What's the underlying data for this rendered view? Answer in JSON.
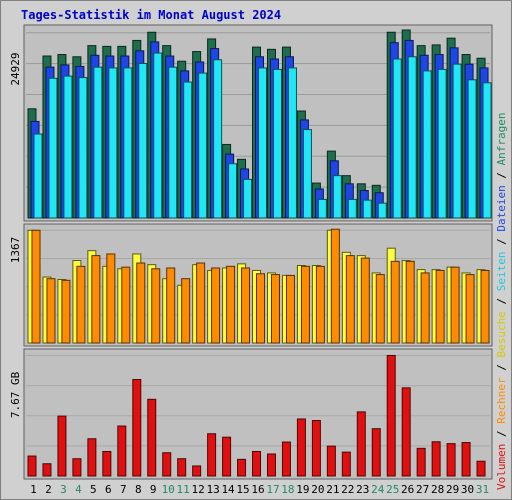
{
  "title": "Tages-Statistik im Monat August 2024",
  "colors": {
    "panel_bg": "#c0c0c0",
    "anfragen": "#1e6e4e",
    "dateien": "#1e46e6",
    "seiten": "#20e6f6",
    "besuche": "#ffff40",
    "rechner": "#ff8c00",
    "volumen": "#e01010",
    "weekend_tick": "#228866",
    "tick": "#000000"
  },
  "legend_right": [
    {
      "text": "Volumen",
      "color": "#e01010"
    },
    {
      "text": " / ",
      "color": "#000000"
    },
    {
      "text": "Rechner",
      "color": "#ff8c00"
    },
    {
      "text": " / ",
      "color": "#000000"
    },
    {
      "text": "Besuche",
      "color": "#d8c800"
    },
    {
      "text": " / ",
      "color": "#000000"
    },
    {
      "text": "Seiten",
      "color": "#20c8e0"
    },
    {
      "text": " / ",
      "color": "#000000"
    },
    {
      "text": "Dateien",
      "color": "#1e46e6"
    },
    {
      "text": " / ",
      "color": "#000000"
    },
    {
      "text": "Anfragen",
      "color": "#1e8e5e"
    }
  ],
  "chart_data": {
    "type": "bar",
    "title": "Tages-Statistik im Monat August 2024",
    "categories": [
      "1",
      "2",
      "3",
      "4",
      "5",
      "6",
      "7",
      "8",
      "9",
      "10",
      "11",
      "12",
      "13",
      "14",
      "15",
      "16",
      "17",
      "18",
      "19",
      "20",
      "21",
      "22",
      "23",
      "24",
      "25",
      "26",
      "27",
      "28",
      "29",
      "30",
      "31"
    ],
    "weekend_days": [
      "3",
      "4",
      "10",
      "11",
      "17",
      "18",
      "24",
      "25",
      "31"
    ],
    "panels": [
      {
        "name": "requests",
        "ymax_label": "24929",
        "ymax": 24929,
        "series": [
          {
            "name": "Anfragen",
            "values": [
              14700,
              21800,
              22000,
              21700,
              23200,
              23100,
              23100,
              23900,
              25000,
              23200,
              21100,
              22400,
              24100,
              9900,
              7900,
              23000,
              22700,
              23000,
              14400,
              4700,
              9000,
              5700,
              4600,
              4400,
              25000,
              25300,
              23200,
              23300,
              24200,
              22000,
              21500
            ]
          },
          {
            "name": "Dateien",
            "values": [
              13000,
              20300,
              20600,
              20400,
              21900,
              21800,
              21800,
              22500,
              23700,
              21800,
              19800,
              21000,
              22800,
              8600,
              6600,
              21700,
              21400,
              21700,
              13200,
              3900,
              7700,
              4600,
              3700,
              3400,
              23600,
              23900,
              21900,
              22000,
              22900,
              20700,
              20200
            ]
          },
          {
            "name": "Seiten",
            "values": [
              11300,
              18800,
              19100,
              18900,
              20300,
              20200,
              20200,
              20800,
              22200,
              20300,
              18300,
              19500,
              21300,
              7300,
              5200,
              20200,
              20000,
              20200,
              11900,
              2500,
              5700,
              2500,
              2400,
              2000,
              21400,
              21700,
              19800,
              20000,
              20700,
              18600,
              18200
            ]
          }
        ]
      },
      {
        "name": "visits",
        "ymax_label": "1367",
        "ymax": 1367,
        "series": [
          {
            "name": "Besuche",
            "values": [
              1367,
              800,
              770,
              1000,
              1120,
              930,
              900,
              1080,
              950,
              780,
              700,
              950,
              880,
              910,
              960,
              880,
              850,
              820,
              940,
              940,
              1367,
              1100,
              1060,
              850,
              1150,
              1000,
              890,
              890,
              920,
              850,
              890
            ]
          },
          {
            "name": "Rechner",
            "values": [
              1367,
              780,
              760,
              930,
              1060,
              1080,
              920,
              970,
              900,
              910,
              780,
              970,
              910,
              930,
              910,
              840,
              830,
              820,
              930,
              930,
              1380,
              1060,
              1030,
              830,
              990,
              990,
              850,
              880,
              920,
              830,
              880
            ]
          }
        ]
      },
      {
        "name": "volume",
        "ymax_label": "7.67 GB",
        "ymax": 7.67,
        "series": [
          {
            "name": "Volumen",
            "values": [
              1.27,
              0.78,
              3.81,
              1.1,
              2.37,
              1.56,
              3.18,
              6.14,
              4.88,
              1.48,
              1.1,
              0.64,
              2.69,
              2.47,
              1.06,
              1.56,
              1.4,
              2.16,
              3.63,
              3.53,
              1.9,
              1.52,
              4.08,
              3.01,
              7.67,
              5.61,
              1.76,
              2.18,
              2.06,
              2.13,
              0.94
            ]
          }
        ]
      }
    ]
  }
}
